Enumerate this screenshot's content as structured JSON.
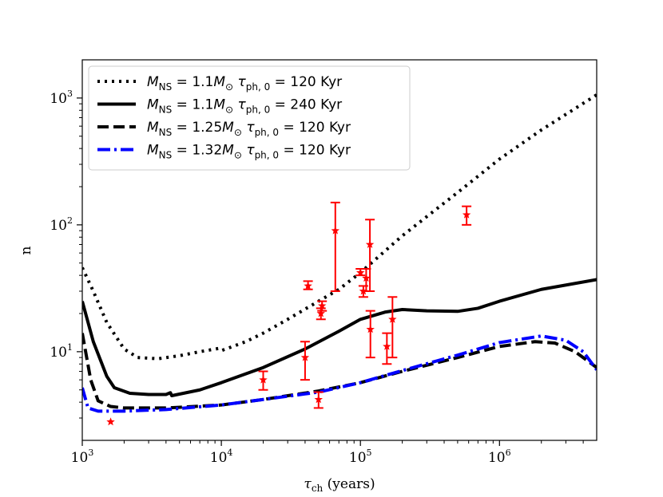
{
  "chart_data": {
    "type": "line",
    "title": "",
    "xlabel": "τ_ch (years)",
    "ylabel": "n",
    "xscale": "log",
    "yscale": "log",
    "xlim": [
      1000,
      5000000
    ],
    "ylim": [
      2,
      2000
    ],
    "x_ticks": [
      {
        "value": 1000,
        "base": "10",
        "exp": "3"
      },
      {
        "value": 10000,
        "base": "10",
        "exp": "4"
      },
      {
        "value": 100000,
        "base": "10",
        "exp": "5"
      },
      {
        "value": 1000000,
        "base": "10",
        "exp": "6"
      }
    ],
    "y_ticks": [
      {
        "value": 10,
        "base": "10",
        "exp": "1"
      },
      {
        "value": 100,
        "base": "10",
        "exp": "2"
      },
      {
        "value": 1000,
        "base": "10",
        "exp": "3"
      }
    ],
    "legend_position": "top-left",
    "series": [
      {
        "name": "M_NS = 1.1M_⊙  τ_ph,0 = 120 Kyr",
        "legend": {
          "m": "1.1",
          "tau": "120 Kyr"
        },
        "color": "#000000",
        "style": "dotted",
        "points": [
          [
            1000,
            46
          ],
          [
            1200,
            30
          ],
          [
            1500,
            17
          ],
          [
            2000,
            10.5
          ],
          [
            2500,
            9
          ],
          [
            3500,
            8.8
          ],
          [
            5000,
            9.3
          ],
          [
            7000,
            10
          ],
          [
            9500,
            10.6
          ],
          [
            10000,
            10.2
          ],
          [
            15000,
            12
          ],
          [
            20000,
            14
          ],
          [
            30000,
            18
          ],
          [
            50000,
            25
          ],
          [
            70000,
            31
          ],
          [
            100000,
            42
          ],
          [
            200000,
            82
          ],
          [
            500000,
            180
          ],
          [
            1000000,
            330
          ],
          [
            2000000,
            560
          ],
          [
            5000000,
            1060
          ]
        ]
      },
      {
        "name": "M_NS = 1.1M_⊙  τ_ph,0 = 240 Kyr",
        "legend": {
          "m": "1.1",
          "tau": "240 Kyr"
        },
        "color": "#000000",
        "style": "solid",
        "points": [
          [
            1000,
            25
          ],
          [
            1200,
            12
          ],
          [
            1500,
            6.4
          ],
          [
            1700,
            5.2
          ],
          [
            2200,
            4.7
          ],
          [
            3000,
            4.6
          ],
          [
            4000,
            4.6
          ],
          [
            4300,
            4.75
          ],
          [
            4400,
            4.5
          ],
          [
            7000,
            5
          ],
          [
            10000,
            5.7
          ],
          [
            20000,
            7.5
          ],
          [
            40000,
            10.5
          ],
          [
            70000,
            14.5
          ],
          [
            100000,
            18
          ],
          [
            150000,
            20.5
          ],
          [
            200000,
            21.5
          ],
          [
            300000,
            21
          ],
          [
            500000,
            20.8
          ],
          [
            700000,
            22
          ],
          [
            1000000,
            25
          ],
          [
            2000000,
            31
          ],
          [
            5000000,
            37
          ]
        ]
      },
      {
        "name": "M_NS = 1.25M_⊙  τ_ph,0 = 120 Kyr",
        "legend": {
          "m": "1.25",
          "tau": "120 Kyr"
        },
        "color": "#000000",
        "style": "dashed",
        "points": [
          [
            1000,
            14
          ],
          [
            1150,
            6
          ],
          [
            1300,
            4.1
          ],
          [
            1600,
            3.7
          ],
          [
            2000,
            3.6
          ],
          [
            4000,
            3.6
          ],
          [
            10000,
            3.8
          ],
          [
            20000,
            4.2
          ],
          [
            50000,
            4.9
          ],
          [
            100000,
            5.7
          ],
          [
            200000,
            7
          ],
          [
            500000,
            9
          ],
          [
            1000000,
            11
          ],
          [
            1800000,
            12
          ],
          [
            2500000,
            11.7
          ],
          [
            3500000,
            10
          ],
          [
            5000000,
            7.5
          ]
        ]
      },
      {
        "name": "M_NS = 1.32M_⊙  τ_ph,0 = 120 Kyr",
        "legend": {
          "m": "1.32",
          "tau": "120 Kyr"
        },
        "color": "#0000ff",
        "style": "dashdot",
        "points": [
          [
            1000,
            5.2
          ],
          [
            1100,
            3.6
          ],
          [
            1300,
            3.4
          ],
          [
            2000,
            3.4
          ],
          [
            4000,
            3.5
          ],
          [
            10000,
            3.8
          ],
          [
            20000,
            4.2
          ],
          [
            50000,
            4.8
          ],
          [
            100000,
            5.7
          ],
          [
            200000,
            7.1
          ],
          [
            500000,
            9.4
          ],
          [
            1000000,
            11.8
          ],
          [
            2000000,
            13.3
          ],
          [
            3000000,
            12.3
          ],
          [
            4000000,
            10
          ],
          [
            5000000,
            7.2
          ]
        ]
      }
    ],
    "observations": {
      "color": "#ff0000",
      "marker": "star",
      "points": [
        {
          "x": 1600,
          "y": 2.8,
          "ylo": 2.8,
          "yhi": 2.8
        },
        {
          "x": 20000,
          "y": 6,
          "ylo": 5,
          "yhi": 7
        },
        {
          "x": 40000,
          "y": 9,
          "ylo": 6,
          "yhi": 12
        },
        {
          "x": 42000,
          "y": 33,
          "ylo": 31,
          "yhi": 36
        },
        {
          "x": 50000,
          "y": 4.2,
          "ylo": 3.6,
          "yhi": 4.8
        },
        {
          "x": 52000,
          "y": 20,
          "ylo": 18,
          "yhi": 22
        },
        {
          "x": 53000,
          "y": 23,
          "ylo": 21,
          "yhi": 25
        },
        {
          "x": 66000,
          "y": 90,
          "ylo": 30,
          "yhi": 150
        },
        {
          "x": 100000,
          "y": 42,
          "ylo": 40,
          "yhi": 45
        },
        {
          "x": 105000,
          "y": 30,
          "ylo": 27,
          "yhi": 33
        },
        {
          "x": 110000,
          "y": 38,
          "ylo": 30,
          "yhi": 45
        },
        {
          "x": 117000,
          "y": 70,
          "ylo": 30,
          "yhi": 110
        },
        {
          "x": 118000,
          "y": 15,
          "ylo": 9,
          "yhi": 21
        },
        {
          "x": 155000,
          "y": 11,
          "ylo": 8,
          "yhi": 14
        },
        {
          "x": 170000,
          "y": 18,
          "ylo": 9,
          "yhi": 27
        },
        {
          "x": 580000,
          "y": 120,
          "ylo": 100,
          "yhi": 140
        }
      ]
    }
  }
}
